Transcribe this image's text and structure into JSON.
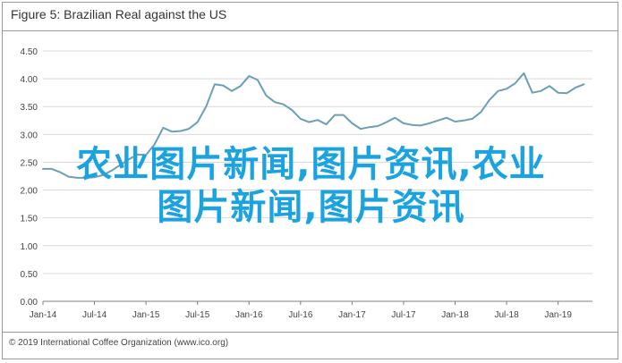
{
  "title": "Figure 5: Brazilian Real against the US",
  "footer": "© 2019 International Coffee Organization (www.ico.org)",
  "overlay": {
    "line1": "农业图片新闻,图片资讯,农业",
    "line2": "图片新闻,图片资讯"
  },
  "colors": {
    "line": "#6a9fb5",
    "overlay": "#1aa3e0",
    "grid": "#d9d9d9"
  },
  "chart_data": {
    "type": "line",
    "title": "Figure 5: Brazilian Real against the US",
    "xlabel": "",
    "ylabel": "",
    "ylim": [
      0,
      4.5
    ],
    "xlim": [
      "2014-01",
      "2019-05"
    ],
    "grid": true,
    "legend": "none",
    "yticks": [
      "0.00",
      "0.50",
      "1.00",
      "1.50",
      "2.00",
      "2.50",
      "3.00",
      "3.50",
      "4.00",
      "4.50"
    ],
    "xticks": [
      {
        "date": "2014-01",
        "label": "Jan-14"
      },
      {
        "date": "2014-07",
        "label": "Jul-14"
      },
      {
        "date": "2015-01",
        "label": "Jan-15"
      },
      {
        "date": "2015-07",
        "label": "Jul-15"
      },
      {
        "date": "2016-01",
        "label": "Jan-16"
      },
      {
        "date": "2016-07",
        "label": "Jul-16"
      },
      {
        "date": "2017-01",
        "label": "Jan-17"
      },
      {
        "date": "2017-07",
        "label": "Jul-17"
      },
      {
        "date": "2018-01",
        "label": "Jan-18"
      },
      {
        "date": "2018-07",
        "label": "Jul-18"
      },
      {
        "date": "2019-01",
        "label": "Jan-19"
      }
    ],
    "series": [
      {
        "x": [
          "2014-01",
          "2014-02",
          "2014-03",
          "2014-04",
          "2014-05",
          "2014-06",
          "2014-07",
          "2014-08",
          "2014-09",
          "2014-10",
          "2014-11",
          "2014-12",
          "2015-01",
          "2015-02",
          "2015-03",
          "2015-04",
          "2015-05",
          "2015-06",
          "2015-07",
          "2015-08",
          "2015-09",
          "2015-10",
          "2015-11",
          "2015-12",
          "2016-01",
          "2016-02",
          "2016-03",
          "2016-04",
          "2016-05",
          "2016-06",
          "2016-07",
          "2016-08",
          "2016-09",
          "2016-10",
          "2016-11",
          "2016-12",
          "2017-01",
          "2017-02",
          "2017-03",
          "2017-04",
          "2017-05",
          "2017-06",
          "2017-07",
          "2017-08",
          "2017-09",
          "2017-10",
          "2017-11",
          "2017-12",
          "2018-01",
          "2018-02",
          "2018-03",
          "2018-04",
          "2018-05",
          "2018-06",
          "2018-07",
          "2018-08",
          "2018-09",
          "2018-10",
          "2018-11",
          "2018-12",
          "2019-01",
          "2019-02",
          "2019-03",
          "2019-04"
        ],
        "y": [
          2.38,
          2.38,
          2.32,
          2.24,
          2.22,
          2.22,
          2.23,
          2.27,
          2.35,
          2.45,
          2.55,
          2.64,
          2.63,
          2.82,
          3.12,
          3.05,
          3.06,
          3.1,
          3.22,
          3.5,
          3.9,
          3.88,
          3.78,
          3.87,
          4.05,
          3.98,
          3.7,
          3.58,
          3.54,
          3.44,
          3.28,
          3.22,
          3.26,
          3.18,
          3.35,
          3.35,
          3.2,
          3.1,
          3.13,
          3.15,
          3.22,
          3.3,
          3.2,
          3.17,
          3.16,
          3.2,
          3.25,
          3.3,
          3.23,
          3.25,
          3.28,
          3.4,
          3.62,
          3.78,
          3.82,
          3.92,
          4.1,
          3.75,
          3.78,
          3.87,
          3.75,
          3.74,
          3.84,
          3.9
        ]
      }
    ]
  }
}
